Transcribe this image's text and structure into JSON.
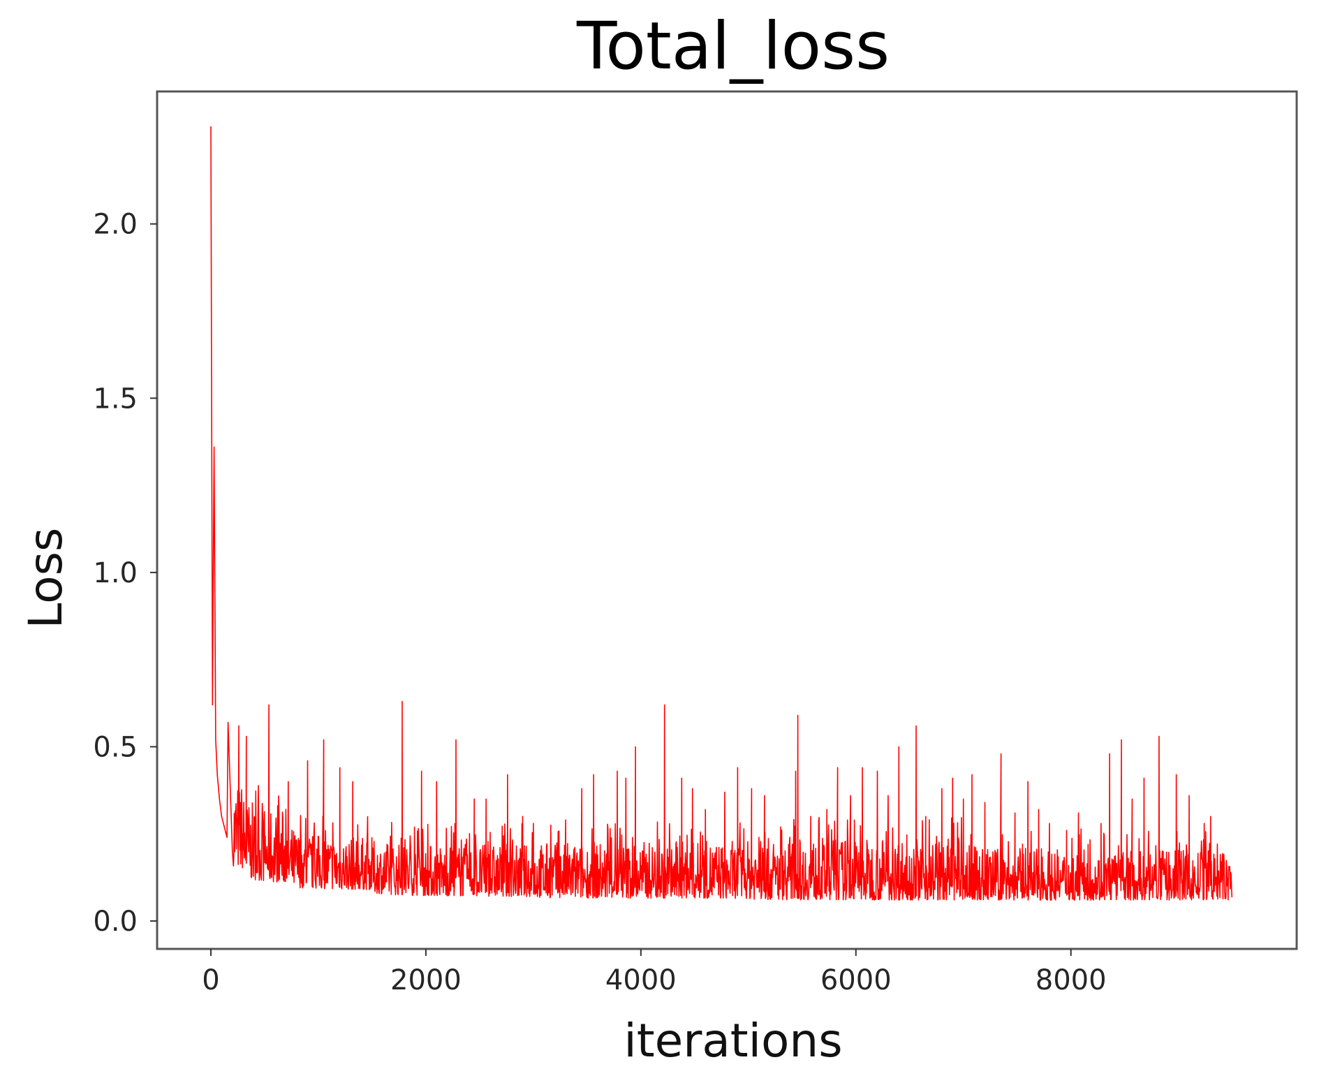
{
  "chart_data": {
    "type": "line",
    "title": "Total_loss",
    "xlabel": "iterations",
    "ylabel": "Loss",
    "xlim": [
      -500,
      10100
    ],
    "ylim": [
      -0.08,
      2.38
    ],
    "xticks": [
      0,
      2000,
      4000,
      6000,
      8000
    ],
    "xtick_labels": [
      "0",
      "2000",
      "4000",
      "6000",
      "8000"
    ],
    "yticks": [
      0.0,
      0.5,
      1.0,
      1.5,
      2.0
    ],
    "ytick_labels": [
      "0.0",
      "0.5",
      "1.0",
      "1.5",
      "2.0"
    ],
    "grid": false,
    "legend": "none",
    "series": [
      {
        "color": "#ff0000",
        "total_iterations": 9500,
        "initial_values": [
          [
            0,
            2.28
          ],
          [
            15,
            0.62
          ],
          [
            30,
            1.36
          ],
          [
            45,
            0.52
          ],
          [
            60,
            0.42
          ],
          [
            80,
            0.35
          ],
          [
            100,
            0.3
          ],
          [
            150,
            0.24
          ],
          [
            200,
            0.2
          ]
        ],
        "floor_trend": [
          [
            0,
            0.6
          ],
          [
            100,
            0.22
          ],
          [
            300,
            0.15
          ],
          [
            700,
            0.11
          ],
          [
            1500,
            0.09
          ],
          [
            3000,
            0.07
          ],
          [
            5000,
            0.065
          ],
          [
            7000,
            0.06
          ],
          [
            9500,
            0.06
          ]
        ],
        "band_top_trend": [
          [
            100,
            0.48
          ],
          [
            300,
            0.4
          ],
          [
            700,
            0.32
          ],
          [
            1500,
            0.24
          ],
          [
            3000,
            0.22
          ],
          [
            5000,
            0.23
          ],
          [
            7000,
            0.24
          ],
          [
            9500,
            0.2
          ]
        ],
        "spikes": [
          [
            160,
            0.57
          ],
          [
            260,
            0.56
          ],
          [
            330,
            0.53
          ],
          [
            540,
            0.62
          ],
          [
            720,
            0.4
          ],
          [
            900,
            0.46
          ],
          [
            1050,
            0.52
          ],
          [
            1200,
            0.44
          ],
          [
            1320,
            0.4
          ],
          [
            1780,
            0.63
          ],
          [
            1960,
            0.43
          ],
          [
            2100,
            0.4
          ],
          [
            2280,
            0.52
          ],
          [
            2450,
            0.35
          ],
          [
            2560,
            0.35
          ],
          [
            2760,
            0.42
          ],
          [
            2900,
            0.3
          ],
          [
            3000,
            0.28
          ],
          [
            3300,
            0.29
          ],
          [
            3450,
            0.38
          ],
          [
            3560,
            0.42
          ],
          [
            3780,
            0.43
          ],
          [
            3860,
            0.41
          ],
          [
            3950,
            0.5
          ],
          [
            4220,
            0.62
          ],
          [
            4380,
            0.41
          ],
          [
            4480,
            0.38
          ],
          [
            4600,
            0.32
          ],
          [
            4780,
            0.37
          ],
          [
            4900,
            0.44
          ],
          [
            5030,
            0.38
          ],
          [
            5150,
            0.36
          ],
          [
            5300,
            0.27
          ],
          [
            5440,
            0.43
          ],
          [
            5460,
            0.59
          ],
          [
            5580,
            0.3
          ],
          [
            5730,
            0.32
          ],
          [
            5830,
            0.44
          ],
          [
            5950,
            0.36
          ],
          [
            6060,
            0.44
          ],
          [
            6200,
            0.43
          ],
          [
            6300,
            0.36
          ],
          [
            6400,
            0.5
          ],
          [
            6560,
            0.56
          ],
          [
            6650,
            0.3
          ],
          [
            6800,
            0.38
          ],
          [
            6900,
            0.41
          ],
          [
            7000,
            0.35
          ],
          [
            7080,
            0.42
          ],
          [
            7200,
            0.34
          ],
          [
            7350,
            0.48
          ],
          [
            7480,
            0.31
          ],
          [
            7600,
            0.4
          ],
          [
            7700,
            0.32
          ],
          [
            7800,
            0.28
          ],
          [
            7960,
            0.26
          ],
          [
            8070,
            0.31
          ],
          [
            8160,
            0.22
          ],
          [
            8280,
            0.28
          ],
          [
            8360,
            0.48
          ],
          [
            8470,
            0.52
          ],
          [
            8570,
            0.35
          ],
          [
            8680,
            0.41
          ],
          [
            8820,
            0.53
          ],
          [
            8980,
            0.42
          ],
          [
            9100,
            0.36
          ],
          [
            9240,
            0.28
          ],
          [
            9300,
            0.3
          ],
          [
            9400,
            0.17
          ]
        ]
      }
    ]
  }
}
